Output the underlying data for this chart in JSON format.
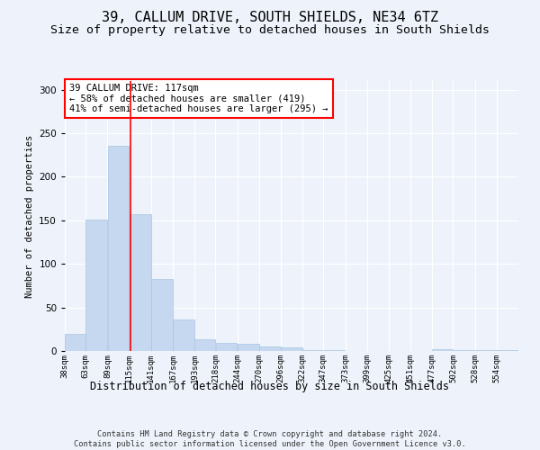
{
  "title": "39, CALLUM DRIVE, SOUTH SHIELDS, NE34 6TZ",
  "subtitle": "Size of property relative to detached houses in South Shields",
  "xlabel": "Distribution of detached houses by size in South Shields",
  "ylabel": "Number of detached properties",
  "footer1": "Contains HM Land Registry data © Crown copyright and database right 2024.",
  "footer2": "Contains public sector information licensed under the Open Government Licence v3.0.",
  "annotation_title": "39 CALLUM DRIVE: 117sqm",
  "annotation_line1": "← 58% of detached houses are smaller (419)",
  "annotation_line2": "41% of semi-detached houses are larger (295) →",
  "bar_color": "#c5d8f0",
  "bar_edge_color": "#a8c4e0",
  "vline_color": "red",
  "vline_x": 117,
  "categories": [
    "38sqm",
    "63sqm",
    "89sqm",
    "115sqm",
    "141sqm",
    "167sqm",
    "193sqm",
    "218sqm",
    "244sqm",
    "270sqm",
    "296sqm",
    "322sqm",
    "347sqm",
    "373sqm",
    "399sqm",
    "425sqm",
    "451sqm",
    "477sqm",
    "502sqm",
    "528sqm",
    "554sqm"
  ],
  "bin_edges": [
    38,
    63,
    89,
    115,
    141,
    167,
    193,
    218,
    244,
    270,
    296,
    322,
    347,
    373,
    399,
    425,
    451,
    477,
    502,
    528,
    554,
    580
  ],
  "values": [
    20,
    151,
    236,
    157,
    83,
    36,
    13,
    9,
    8,
    5,
    4,
    1,
    1,
    0,
    0,
    0,
    0,
    2,
    1,
    1,
    1
  ],
  "ylim": [
    0,
    310
  ],
  "yticks": [
    0,
    50,
    100,
    150,
    200,
    250,
    300
  ],
  "bg_color": "#eef3fb",
  "title_fontsize": 11,
  "subtitle_fontsize": 9.5,
  "annotation_box_color": "white",
  "annotation_box_edge_color": "red"
}
